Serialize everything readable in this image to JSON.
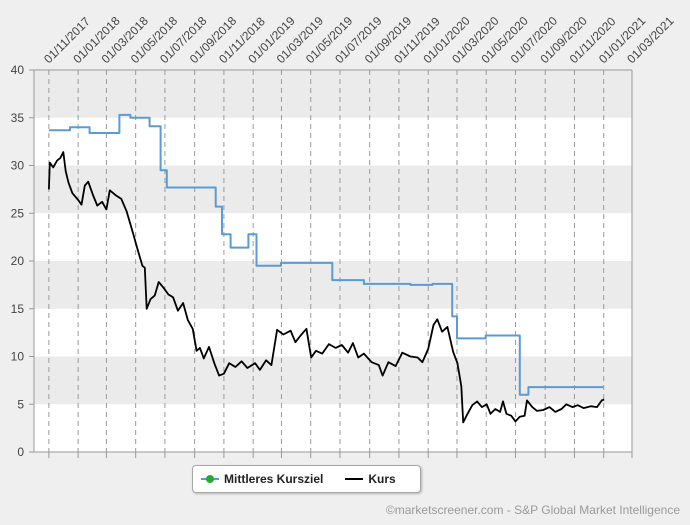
{
  "chart_data": {
    "type": "line",
    "x_tick_labels": [
      "01/11/2017",
      "01/01/2018",
      "01/03/2018",
      "01/05/2018",
      "01/07/2018",
      "01/09/2018",
      "01/11/2018",
      "01/01/2019",
      "01/03/2019",
      "01/05/2019",
      "01/07/2019",
      "01/09/2019",
      "01/11/2019",
      "01/01/2020",
      "01/03/2020",
      "01/05/2020",
      "01/07/2020",
      "01/09/2020",
      "01/11/2020",
      "01/01/2021",
      "01/03/2021"
    ],
    "y_ticks": [
      0,
      5,
      10,
      15,
      20,
      25,
      30,
      35,
      40
    ],
    "ylim": [
      0,
      40
    ],
    "xlim": [
      "2017-10-01",
      "2021-03-01"
    ],
    "grid": true,
    "legend_position": "bottom",
    "series": [
      {
        "name": "Mittleres Kursziel",
        "color": "#5b9bd5",
        "step": true,
        "points": [
          [
            "2017-11-01",
            33.7
          ],
          [
            "2017-12-15",
            34.0
          ],
          [
            "2018-01-25",
            33.4
          ],
          [
            "2018-03-28",
            35.3
          ],
          [
            "2018-04-20",
            35.0
          ],
          [
            "2018-05-30",
            34.1
          ],
          [
            "2018-06-22",
            29.5
          ],
          [
            "2018-07-05",
            27.7
          ],
          [
            "2018-10-15",
            25.7
          ],
          [
            "2018-10-28",
            22.8
          ],
          [
            "2018-11-15",
            21.4
          ],
          [
            "2018-12-22",
            22.8
          ],
          [
            "2019-01-08",
            19.5
          ],
          [
            "2019-02-28",
            19.8
          ],
          [
            "2019-06-15",
            18.0
          ],
          [
            "2019-08-20",
            17.6
          ],
          [
            "2019-11-25",
            17.5
          ],
          [
            "2020-01-10",
            17.6
          ],
          [
            "2020-02-20",
            14.2
          ],
          [
            "2020-03-01",
            11.9
          ],
          [
            "2020-04-30",
            12.2
          ],
          [
            "2020-07-10",
            6.0
          ],
          [
            "2020-07-28",
            6.8
          ],
          [
            "2020-12-31",
            6.8
          ]
        ]
      },
      {
        "name": "Kurs",
        "color": "#000000",
        "points": [
          [
            "2017-11-01",
            27.5
          ],
          [
            "2017-11-03",
            30.3
          ],
          [
            "2017-11-10",
            29.8
          ],
          [
            "2017-11-18",
            30.5
          ],
          [
            "2017-11-25",
            30.8
          ],
          [
            "2017-12-01",
            31.4
          ],
          [
            "2017-12-06",
            29.4
          ],
          [
            "2017-12-12",
            28.2
          ],
          [
            "2017-12-20",
            27.1
          ],
          [
            "2018-01-01",
            26.4
          ],
          [
            "2018-01-08",
            25.9
          ],
          [
            "2018-01-15",
            27.9
          ],
          [
            "2018-01-22",
            28.3
          ],
          [
            "2018-02-01",
            26.9
          ],
          [
            "2018-02-10",
            25.8
          ],
          [
            "2018-02-20",
            26.2
          ],
          [
            "2018-03-01",
            25.4
          ],
          [
            "2018-03-08",
            27.4
          ],
          [
            "2018-03-20",
            26.9
          ],
          [
            "2018-04-01",
            26.5
          ],
          [
            "2018-04-12",
            25.2
          ],
          [
            "2018-04-25",
            23.0
          ],
          [
            "2018-05-05",
            21.2
          ],
          [
            "2018-05-15",
            19.5
          ],
          [
            "2018-05-20",
            19.3
          ],
          [
            "2018-05-24",
            15.0
          ],
          [
            "2018-06-01",
            16.0
          ],
          [
            "2018-06-10",
            16.4
          ],
          [
            "2018-06-18",
            17.8
          ],
          [
            "2018-06-28",
            17.2
          ],
          [
            "2018-07-08",
            16.5
          ],
          [
            "2018-07-18",
            16.2
          ],
          [
            "2018-07-28",
            14.8
          ],
          [
            "2018-08-08",
            15.6
          ],
          [
            "2018-08-18",
            13.8
          ],
          [
            "2018-08-28",
            12.9
          ],
          [
            "2018-09-05",
            10.6
          ],
          [
            "2018-09-12",
            10.9
          ],
          [
            "2018-09-20",
            9.8
          ],
          [
            "2018-10-01",
            11.0
          ],
          [
            "2018-10-12",
            9.3
          ],
          [
            "2018-10-22",
            8.0
          ],
          [
            "2018-11-01",
            8.2
          ],
          [
            "2018-11-12",
            9.3
          ],
          [
            "2018-11-25",
            8.9
          ],
          [
            "2018-12-08",
            9.5
          ],
          [
            "2018-12-20",
            8.8
          ],
          [
            "2019-01-05",
            9.3
          ],
          [
            "2019-01-15",
            8.6
          ],
          [
            "2019-01-28",
            9.6
          ],
          [
            "2019-02-08",
            9.1
          ],
          [
            "2019-02-20",
            12.8
          ],
          [
            "2019-03-05",
            12.3
          ],
          [
            "2019-03-20",
            12.7
          ],
          [
            "2019-03-30",
            11.5
          ],
          [
            "2019-04-10",
            12.2
          ],
          [
            "2019-04-22",
            12.9
          ],
          [
            "2019-05-02",
            9.9
          ],
          [
            "2019-05-12",
            10.6
          ],
          [
            "2019-05-25",
            10.3
          ],
          [
            "2019-06-08",
            11.3
          ],
          [
            "2019-06-22",
            10.9
          ],
          [
            "2019-07-05",
            11.2
          ],
          [
            "2019-07-18",
            10.4
          ],
          [
            "2019-07-28",
            11.4
          ],
          [
            "2019-08-08",
            9.9
          ],
          [
            "2019-08-20",
            10.3
          ],
          [
            "2019-09-05",
            9.4
          ],
          [
            "2019-09-20",
            9.1
          ],
          [
            "2019-09-28",
            8.0
          ],
          [
            "2019-10-10",
            9.4
          ],
          [
            "2019-10-25",
            9.0
          ],
          [
            "2019-11-08",
            10.4
          ],
          [
            "2019-11-25",
            10.0
          ],
          [
            "2019-12-10",
            9.9
          ],
          [
            "2019-12-20",
            9.4
          ],
          [
            "2020-01-01",
            10.8
          ],
          [
            "2020-01-12",
            13.3
          ],
          [
            "2020-01-20",
            13.9
          ],
          [
            "2020-01-30",
            12.6
          ],
          [
            "2020-02-10",
            13.1
          ],
          [
            "2020-02-22",
            10.5
          ],
          [
            "2020-03-02",
            9.3
          ],
          [
            "2020-03-10",
            6.9
          ],
          [
            "2020-03-14",
            3.1
          ],
          [
            "2020-03-22",
            3.9
          ],
          [
            "2020-04-02",
            4.9
          ],
          [
            "2020-04-12",
            5.3
          ],
          [
            "2020-04-22",
            4.7
          ],
          [
            "2020-05-02",
            5.0
          ],
          [
            "2020-05-10",
            4.0
          ],
          [
            "2020-05-20",
            4.5
          ],
          [
            "2020-05-30",
            4.2
          ],
          [
            "2020-06-05",
            5.3
          ],
          [
            "2020-06-12",
            4.0
          ],
          [
            "2020-06-22",
            3.8
          ],
          [
            "2020-07-01",
            3.2
          ],
          [
            "2020-07-10",
            3.7
          ],
          [
            "2020-07-20",
            3.8
          ],
          [
            "2020-07-25",
            5.4
          ],
          [
            "2020-08-05",
            4.7
          ],
          [
            "2020-08-15",
            4.3
          ],
          [
            "2020-08-28",
            4.4
          ],
          [
            "2020-09-10",
            4.7
          ],
          [
            "2020-09-22",
            4.2
          ],
          [
            "2020-10-05",
            4.5
          ],
          [
            "2020-10-15",
            5.0
          ],
          [
            "2020-10-28",
            4.7
          ],
          [
            "2020-11-08",
            4.9
          ],
          [
            "2020-11-20",
            4.6
          ],
          [
            "2020-12-05",
            4.8
          ],
          [
            "2020-12-18",
            4.7
          ],
          [
            "2020-12-28",
            5.4
          ],
          [
            "2021-01-02",
            5.5
          ]
        ]
      }
    ]
  },
  "legend": {
    "target_label": "Mittleres Kursziel",
    "price_label": "Kurs"
  },
  "credit": "©marketscreener.com - S&P Global Market Intelligence"
}
